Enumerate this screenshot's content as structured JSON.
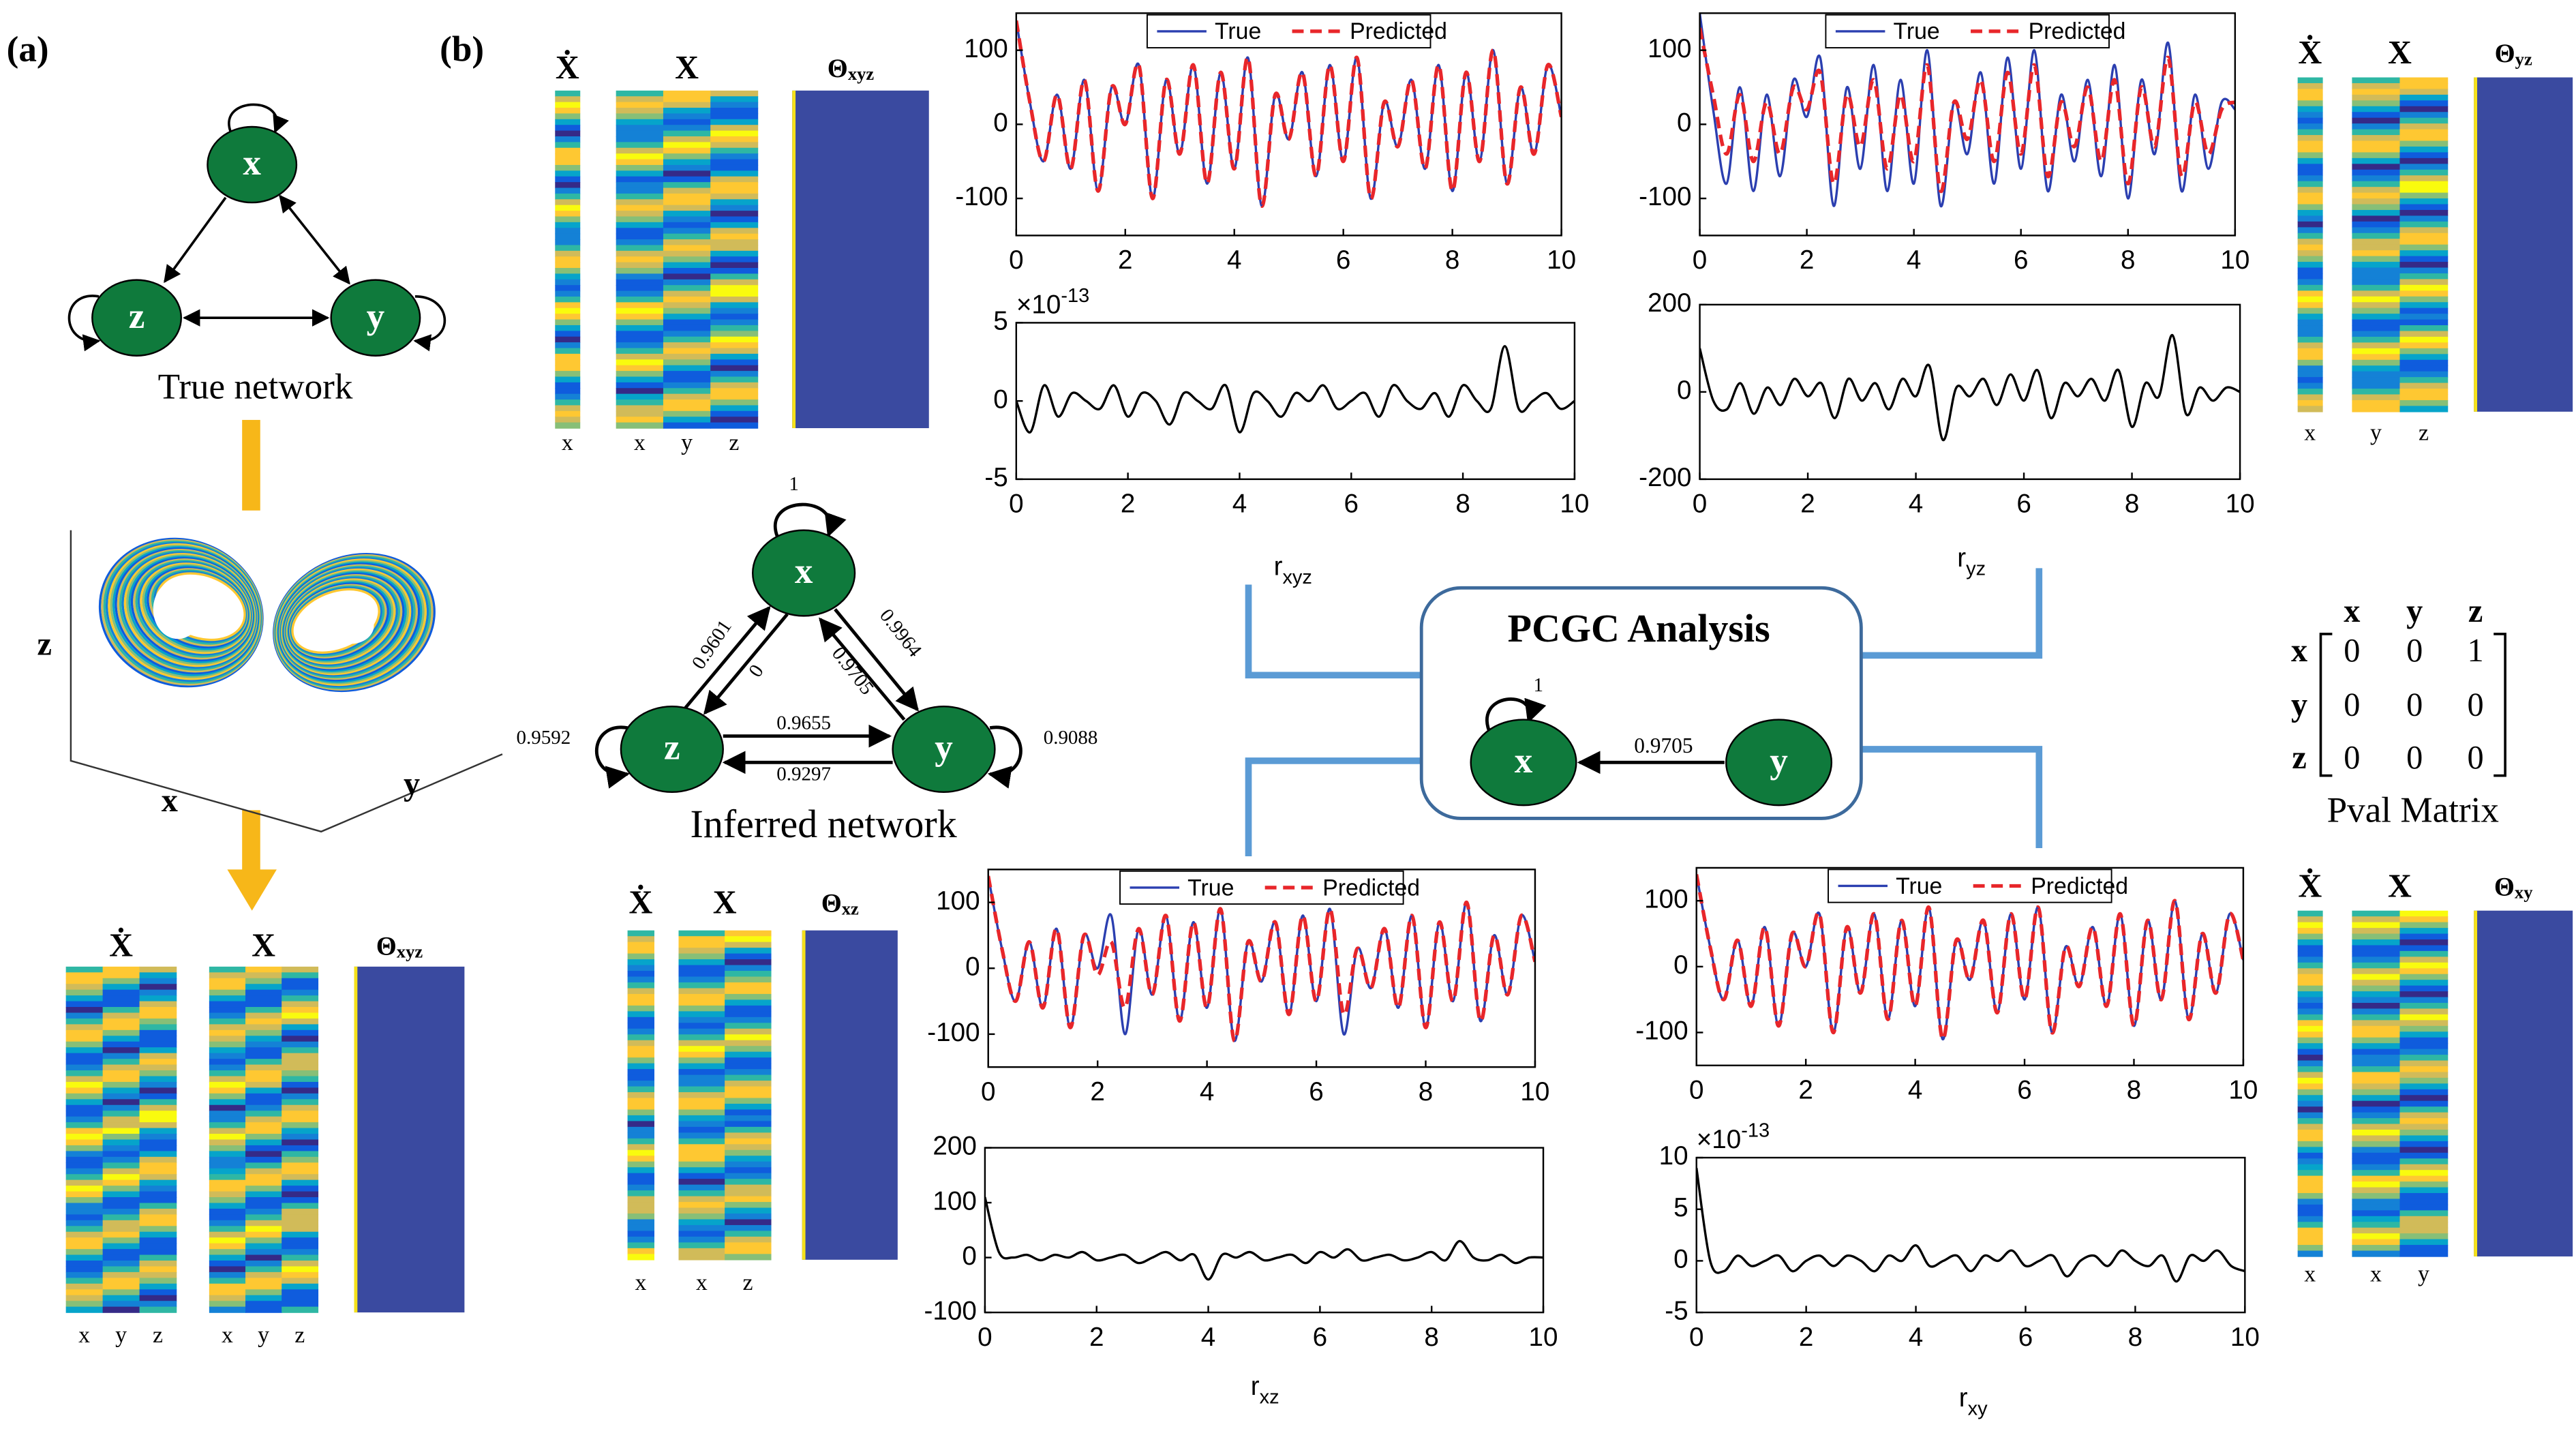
{
  "panels": {
    "a": "(a)",
    "b": "(b)"
  },
  "true_network": {
    "label": "True network",
    "nodes": [
      "x",
      "z",
      "y"
    ]
  },
  "attractor": {
    "axes": [
      "z",
      "x",
      "y"
    ]
  },
  "heatmap_groups": [
    {
      "dot_title": "Ẋ",
      "x_title": "X",
      "theta": "Θ",
      "theta_sub": "xyz",
      "dot_cols": [
        "x",
        "y",
        "z"
      ],
      "x_cols": [
        "x",
        "y",
        "z"
      ]
    },
    {
      "dot_title": "Ẋ",
      "x_title": "X",
      "theta": "Θ",
      "theta_sub": "xyz",
      "dot_cols": [
        "x"
      ],
      "x_cols": [
        "x",
        "y",
        "z"
      ]
    },
    {
      "dot_title": "Ẋ",
      "x_title": "X",
      "theta": "Θ",
      "theta_sub": "yz",
      "dot_cols": [
        "x"
      ],
      "x_cols": [
        "y",
        "z"
      ]
    },
    {
      "dot_title": "Ẋ",
      "x_title": "X",
      "theta": "Θ",
      "theta_sub": "xz",
      "dot_cols": [
        "x"
      ],
      "x_cols": [
        "x",
        "z"
      ]
    },
    {
      "dot_title": "Ẋ",
      "x_title": "X",
      "theta": "Θ",
      "theta_sub": "xy",
      "dot_cols": [
        "x"
      ],
      "x_cols": [
        "x",
        "y"
      ]
    }
  ],
  "inferred_network": {
    "label": "Inferred network",
    "nodes": [
      "x",
      "z",
      "y"
    ],
    "weights": {
      "x_self": 1,
      "z_self": 0.9592,
      "y_self": 0.9088,
      "z_x": 0.9601,
      "x_z": 0,
      "x_y": 0.9964,
      "y_x": 0.9705,
      "z_y": 0.9655,
      "y_z": 0.9297
    }
  },
  "pcgc": {
    "title": "PCGC Analysis",
    "nodes": [
      "x",
      "y"
    ],
    "self_weight": 1,
    "edge_weight": 0.9705
  },
  "pval": {
    "title": "Pval Matrix",
    "cols": [
      "x",
      "y",
      "z"
    ],
    "rows": [
      "x",
      "y",
      "z"
    ],
    "values": [
      [
        0,
        0,
        1
      ],
      [
        0,
        0,
        0
      ],
      [
        0,
        0,
        0
      ]
    ]
  },
  "chart_data": [
    {
      "type": "line",
      "xlim": [
        0,
        10
      ],
      "ylim": [
        -150,
        150
      ],
      "xticks": [
        0,
        2,
        4,
        6,
        8,
        10
      ],
      "yticks": [
        -100,
        0,
        100
      ],
      "legend": "upper center",
      "x": [
        0,
        0.25,
        0.5,
        0.75,
        1,
        1.25,
        1.5,
        1.75,
        2,
        2.25,
        2.5,
        2.75,
        3,
        3.25,
        3.5,
        3.75,
        4,
        4.25,
        4.5,
        4.75,
        5,
        5.25,
        5.5,
        5.75,
        6,
        6.25,
        6.5,
        6.75,
        7,
        7.25,
        7.5,
        7.75,
        8,
        8.25,
        8.5,
        8.75,
        9,
        9.25,
        9.5,
        9.75,
        10
      ],
      "series": [
        {
          "name": "True",
          "color": "#2b3fb0",
          "linestyle": "solid",
          "values": [
            140,
            30,
            -50,
            40,
            -60,
            60,
            -90,
            50,
            0,
            80,
            -100,
            60,
            -40,
            80,
            -80,
            70,
            -60,
            90,
            -110,
            40,
            -20,
            70,
            -70,
            80,
            -50,
            90,
            -100,
            30,
            -30,
            60,
            -60,
            80,
            -90,
            70,
            -50,
            100,
            -80,
            50,
            -40,
            80,
            10
          ]
        },
        {
          "name": "Predicted",
          "color": "#e8262a",
          "linestyle": "dashed",
          "values": [
            140,
            30,
            -50,
            40,
            -60,
            60,
            -90,
            50,
            0,
            80,
            -100,
            60,
            -40,
            80,
            -80,
            70,
            -60,
            90,
            -110,
            40,
            -20,
            70,
            -70,
            80,
            -50,
            90,
            -100,
            30,
            -30,
            60,
            -60,
            80,
            -90,
            70,
            -50,
            100,
            -80,
            50,
            -40,
            80,
            10
          ]
        }
      ]
    },
    {
      "type": "line",
      "xlim": [
        0,
        10
      ],
      "ylim": [
        -5,
        5
      ],
      "xticks": [
        0,
        2,
        4,
        6,
        8,
        10
      ],
      "yticks": [
        -5,
        0,
        5
      ],
      "scale_label": "×10",
      "scale_exponent": "-13",
      "xlabel": "r",
      "xlabel_sub": "xyz",
      "color": "#000000",
      "x": [
        0,
        0.25,
        0.5,
        0.75,
        1,
        1.25,
        1.5,
        1.75,
        2,
        2.25,
        2.5,
        2.75,
        3,
        3.25,
        3.5,
        3.75,
        4,
        4.25,
        4.5,
        4.75,
        5,
        5.25,
        5.5,
        5.75,
        6,
        6.25,
        6.5,
        6.75,
        7,
        7.25,
        7.5,
        7.75,
        8,
        8.25,
        8.5,
        8.75,
        9,
        9.25,
        9.5,
        9.75,
        10
      ],
      "values": [
        0,
        -2,
        1,
        -1,
        0.5,
        0,
        -0.5,
        1,
        -1,
        0.5,
        0,
        -1.5,
        0.5,
        0,
        -0.5,
        1,
        -2,
        0.5,
        0,
        -1,
        0.5,
        0,
        1,
        -0.5,
        0,
        0.5,
        -1,
        1,
        0,
        -0.5,
        0.5,
        -1,
        1,
        0,
        -0.5,
        3.5,
        -0.5,
        0,
        0.5,
        -0.5,
        0
      ]
    },
    {
      "type": "line",
      "xlim": [
        0,
        10
      ],
      "ylim": [
        -150,
        150
      ],
      "xticks": [
        0,
        2,
        4,
        6,
        8,
        10
      ],
      "yticks": [
        -100,
        0,
        100
      ],
      "legend": "upper center",
      "x": [
        0,
        0.25,
        0.5,
        0.75,
        1,
        1.25,
        1.5,
        1.75,
        2,
        2.25,
        2.5,
        2.75,
        3,
        3.25,
        3.5,
        3.75,
        4,
        4.25,
        4.5,
        4.75,
        5,
        5.25,
        5.5,
        5.75,
        6,
        6.25,
        6.5,
        6.75,
        7,
        7.25,
        7.5,
        7.75,
        8,
        8.25,
        8.5,
        8.75,
        9,
        9.25,
        9.5,
        9.75,
        10
      ],
      "series": [
        {
          "name": "True",
          "color": "#2b3fb0",
          "linestyle": "solid",
          "values": [
            150,
            20,
            -80,
            50,
            -90,
            40,
            -70,
            60,
            10,
            90,
            -110,
            50,
            -60,
            80,
            -90,
            60,
            -80,
            100,
            -110,
            30,
            -40,
            70,
            -80,
            90,
            -60,
            100,
            -90,
            40,
            -50,
            60,
            -70,
            80,
            -100,
            60,
            -40,
            110,
            -90,
            40,
            -60,
            30,
            20
          ]
        },
        {
          "name": "Predicted",
          "color": "#e8262a",
          "linestyle": "dashed",
          "values": [
            130,
            40,
            -40,
            40,
            -50,
            30,
            -40,
            50,
            20,
            70,
            -80,
            40,
            -30,
            60,
            -60,
            40,
            -50,
            80,
            -90,
            30,
            -20,
            60,
            -50,
            70,
            -40,
            80,
            -70,
            30,
            -30,
            50,
            -50,
            60,
            -80,
            50,
            -30,
            90,
            -70,
            30,
            -40,
            20,
            30
          ]
        }
      ]
    },
    {
      "type": "line",
      "xlim": [
        0,
        10
      ],
      "ylim": [
        -200,
        200
      ],
      "xticks": [
        0,
        2,
        4,
        6,
        8,
        10
      ],
      "yticks": [
        -200,
        0,
        200
      ],
      "xlabel": "r",
      "xlabel_sub": "yz",
      "color": "#000000",
      "x": [
        0,
        0.25,
        0.5,
        0.75,
        1,
        1.25,
        1.5,
        1.75,
        2,
        2.25,
        2.5,
        2.75,
        3,
        3.25,
        3.5,
        3.75,
        4,
        4.25,
        4.5,
        4.75,
        5,
        5.25,
        5.5,
        5.75,
        6,
        6.25,
        6.5,
        6.75,
        7,
        7.25,
        7.5,
        7.75,
        8,
        8.25,
        8.5,
        8.75,
        9,
        9.25,
        9.5,
        9.75,
        10
      ],
      "values": [
        100,
        -20,
        -40,
        20,
        -50,
        10,
        -30,
        30,
        -10,
        20,
        -60,
        30,
        -20,
        20,
        -40,
        30,
        -10,
        60,
        -110,
        10,
        -10,
        30,
        -30,
        40,
        -20,
        50,
        -60,
        20,
        -10,
        30,
        -20,
        50,
        -80,
        20,
        -10,
        130,
        -50,
        10,
        -20,
        10,
        0
      ]
    },
    {
      "type": "line",
      "xlim": [
        0,
        10
      ],
      "ylim": [
        -150,
        150
      ],
      "xticks": [
        0,
        2,
        4,
        6,
        8,
        10
      ],
      "yticks": [
        -100,
        0,
        100
      ],
      "legend": "upper center",
      "x": [
        0,
        0.25,
        0.5,
        0.75,
        1,
        1.25,
        1.5,
        1.75,
        2,
        2.25,
        2.5,
        2.75,
        3,
        3.25,
        3.5,
        3.75,
        4,
        4.25,
        4.5,
        4.75,
        5,
        5.25,
        5.5,
        5.75,
        6,
        6.25,
        6.5,
        6.75,
        7,
        7.25,
        7.5,
        7.75,
        8,
        8.25,
        8.5,
        8.75,
        9,
        9.25,
        9.5,
        9.75,
        10
      ],
      "series": [
        {
          "name": "True",
          "color": "#2b3fb0",
          "linestyle": "solid",
          "values": [
            140,
            30,
            -50,
            40,
            -60,
            60,
            -90,
            50,
            0,
            80,
            -100,
            60,
            -40,
            80,
            -80,
            70,
            -60,
            90,
            -110,
            40,
            -20,
            70,
            -70,
            80,
            -50,
            90,
            -100,
            30,
            -30,
            60,
            -60,
            80,
            -90,
            70,
            -50,
            100,
            -80,
            50,
            -40,
            80,
            10
          ]
        },
        {
          "name": "Predicted",
          "color": "#e8262a",
          "linestyle": "dashed",
          "values": [
            140,
            30,
            -50,
            40,
            -60,
            60,
            -90,
            50,
            -10,
            40,
            -60,
            60,
            -40,
            80,
            -80,
            70,
            -60,
            90,
            -110,
            40,
            -20,
            70,
            -70,
            80,
            -50,
            90,
            -70,
            30,
            -30,
            60,
            -60,
            80,
            -90,
            70,
            -50,
            100,
            -80,
            50,
            -40,
            80,
            10
          ]
        }
      ]
    },
    {
      "type": "line",
      "xlim": [
        0,
        10
      ],
      "ylim": [
        -100,
        200
      ],
      "xticks": [
        0,
        2,
        4,
        6,
        8,
        10
      ],
      "yticks": [
        -100,
        0,
        100,
        200
      ],
      "xlabel": "r",
      "xlabel_sub": "xz",
      "color": "#000000",
      "x": [
        0,
        0.25,
        0.5,
        0.75,
        1,
        1.25,
        1.5,
        1.75,
        2,
        2.25,
        2.5,
        2.75,
        3,
        3.25,
        3.5,
        3.75,
        4,
        4.25,
        4.5,
        4.75,
        5,
        5.25,
        5.5,
        5.75,
        6,
        6.25,
        6.5,
        6.75,
        7,
        7.25,
        7.5,
        7.75,
        8,
        8.25,
        8.5,
        8.75,
        9,
        9.25,
        9.5,
        9.75,
        10
      ],
      "values": [
        110,
        10,
        0,
        5,
        -5,
        5,
        0,
        10,
        -5,
        0,
        5,
        -10,
        0,
        10,
        -5,
        5,
        -40,
        5,
        0,
        10,
        -5,
        0,
        5,
        -10,
        10,
        0,
        15,
        -5,
        0,
        5,
        -5,
        0,
        10,
        -5,
        30,
        0,
        -5,
        5,
        -10,
        0,
        0
      ]
    },
    {
      "type": "line",
      "xlim": [
        0,
        10
      ],
      "ylim": [
        -150,
        150
      ],
      "xticks": [
        0,
        2,
        4,
        6,
        8,
        10
      ],
      "yticks": [
        -100,
        0,
        100
      ],
      "legend": "upper center",
      "x": [
        0,
        0.25,
        0.5,
        0.75,
        1,
        1.25,
        1.5,
        1.75,
        2,
        2.25,
        2.5,
        2.75,
        3,
        3.25,
        3.5,
        3.75,
        4,
        4.25,
        4.5,
        4.75,
        5,
        5.25,
        5.5,
        5.75,
        6,
        6.25,
        6.5,
        6.75,
        7,
        7.25,
        7.5,
        7.75,
        8,
        8.25,
        8.5,
        8.75,
        9,
        9.25,
        9.5,
        9.75,
        10
      ],
      "series": [
        {
          "name": "True",
          "color": "#2b3fb0",
          "linestyle": "solid",
          "values": [
            140,
            30,
            -50,
            40,
            -60,
            60,
            -90,
            50,
            0,
            80,
            -100,
            60,
            -40,
            80,
            -80,
            70,
            -60,
            90,
            -110,
            40,
            -20,
            70,
            -70,
            80,
            -50,
            90,
            -100,
            30,
            -30,
            60,
            -60,
            80,
            -90,
            70,
            -50,
            100,
            -80,
            50,
            -40,
            80,
            10
          ]
        },
        {
          "name": "Predicted",
          "color": "#e8262a",
          "linestyle": "dashed",
          "values": [
            140,
            30,
            -50,
            40,
            -60,
            60,
            -90,
            50,
            0,
            80,
            -100,
            60,
            -40,
            80,
            -80,
            70,
            -60,
            90,
            -110,
            40,
            -20,
            70,
            -70,
            80,
            -50,
            90,
            -100,
            30,
            -30,
            60,
            -60,
            80,
            -90,
            70,
            -50,
            100,
            -80,
            50,
            -40,
            80,
            10
          ]
        }
      ]
    },
    {
      "type": "line",
      "xlim": [
        0,
        10
      ],
      "ylim": [
        -5,
        10
      ],
      "xticks": [
        0,
        2,
        4,
        6,
        8,
        10
      ],
      "yticks": [
        -5,
        0,
        5,
        10
      ],
      "scale_label": "×10",
      "scale_exponent": "-13",
      "xlabel": "r",
      "xlabel_sub": "xy",
      "color": "#000000",
      "x": [
        0,
        0.25,
        0.5,
        0.75,
        1,
        1.25,
        1.5,
        1.75,
        2,
        2.25,
        2.5,
        2.75,
        3,
        3.25,
        3.5,
        3.75,
        4,
        4.25,
        4.5,
        4.75,
        5,
        5.25,
        5.5,
        5.75,
        6,
        6.25,
        6.5,
        6.75,
        7,
        7.25,
        7.5,
        7.75,
        8,
        8.25,
        8.5,
        8.75,
        9,
        9.25,
        9.5,
        9.75,
        10
      ],
      "values": [
        9,
        0,
        -1,
        0.5,
        -0.5,
        0,
        0.5,
        -1,
        0,
        0.5,
        -0.5,
        0.5,
        0,
        -1,
        0.5,
        0,
        1.5,
        -0.5,
        0,
        0.5,
        -1,
        0.5,
        0,
        1,
        -0.5,
        0,
        0.5,
        -1.5,
        0,
        0.5,
        -0.5,
        1,
        0,
        -0.5,
        0.5,
        -2,
        0.5,
        0,
        1,
        -0.5,
        -1
      ]
    }
  ]
}
